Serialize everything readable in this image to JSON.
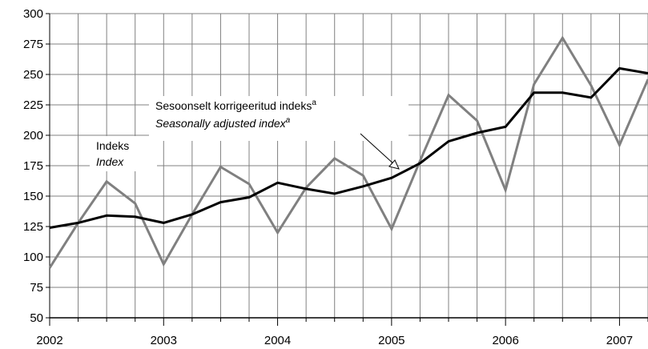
{
  "chart_data": {
    "type": "line",
    "title": "",
    "xlabel": "",
    "ylabel": "",
    "ylim": [
      50,
      300
    ],
    "yticks": [
      50,
      75,
      100,
      125,
      150,
      175,
      200,
      225,
      250,
      275,
      300
    ],
    "xticks": [
      "2002",
      "2003",
      "2004",
      "2005",
      "2006",
      "2007"
    ],
    "xlim": [
      2002.0,
      2007.25
    ],
    "grid": true,
    "x_quarters": [
      "2002 Q1",
      "2002 Q2",
      "2002 Q3",
      "2002 Q4",
      "2003 Q1",
      "2003 Q2",
      "2003 Q3",
      "2003 Q4",
      "2004 Q1",
      "2004 Q2",
      "2004 Q3",
      "2004 Q4",
      "2005 Q1",
      "2005 Q2",
      "2005 Q3",
      "2005 Q4",
      "2006 Q1",
      "2006 Q2",
      "2006 Q3",
      "2006 Q4",
      "2007 Q1",
      "2007 Q2"
    ],
    "series": [
      {
        "name": "Indeks / Index",
        "color": "#808080",
        "values": [
          91,
          128,
          162,
          144,
          94,
          135,
          174,
          160,
          120,
          157,
          181,
          167,
          123,
          179,
          233,
          212,
          155,
          242,
          280,
          241,
          192,
          246
        ]
      },
      {
        "name": "Sesoonselt korrigeeritud indeks / Seasonally adjusted index",
        "color": "#000000",
        "values": [
          124,
          128,
          134,
          133,
          128,
          135,
          145,
          149,
          161,
          156,
          152,
          158,
          165,
          177,
          195,
          202,
          207,
          235,
          235,
          231,
          255,
          251
        ]
      }
    ],
    "annotations": {
      "raw_et": "Indeks",
      "raw_en": "Index",
      "sa_et": "Sesoonselt korrigeeritud indeks",
      "sa_en": "Seasonally adjusted index",
      "footnote_mark": "a"
    }
  }
}
